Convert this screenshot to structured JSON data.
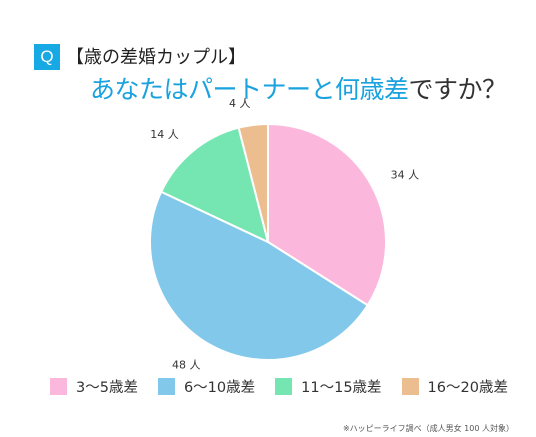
{
  "header": {
    "q_label": "Q",
    "subtitle": "【歳の差婚カップル】",
    "title_highlight": "あなたはパートナーと何歳差",
    "title_rest": "ですか？"
  },
  "chart_data": {
    "type": "pie",
    "unit": "人",
    "slices": [
      {
        "label": "3〜5歳差",
        "value": 34,
        "value_label": "34 人",
        "color": "#fcb7dd"
      },
      {
        "label": "6〜10歳差",
        "value": 48,
        "value_label": "48 人",
        "color": "#82c8ea"
      },
      {
        "label": "11〜15歳差",
        "value": 14,
        "value_label": "14 人",
        "color": "#75e6b2"
      },
      {
        "label": "16〜20歳差",
        "value": 4,
        "value_label": "4 人",
        "color": "#ecbd8f"
      }
    ],
    "legend_position": "bottom"
  },
  "footer": {
    "source": "※ハッピーライフ調べ（成人男女 100 人対象）"
  }
}
